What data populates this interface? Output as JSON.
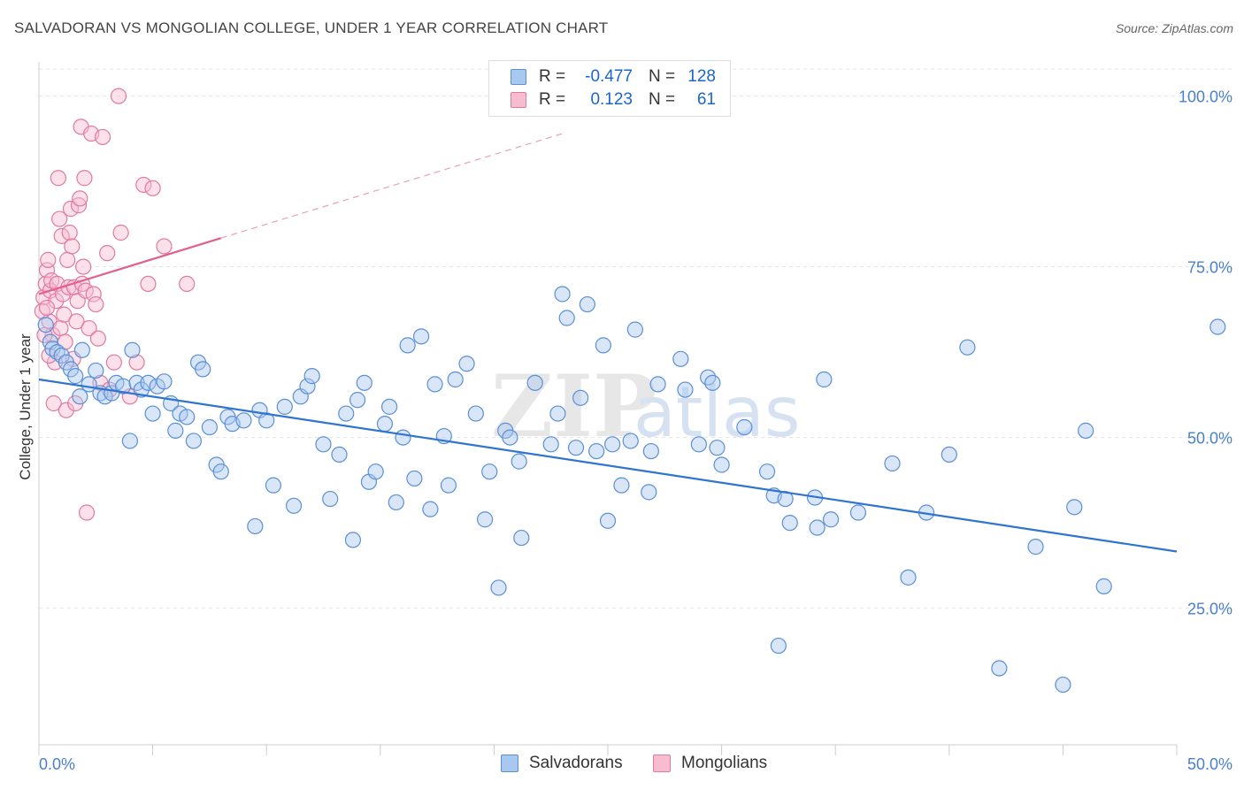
{
  "header": {
    "title": "SALVADORAN VS MONGOLIAN COLLEGE, UNDER 1 YEAR CORRELATION CHART",
    "source": "Source: ZipAtlas.com"
  },
  "legend": {
    "rows": [
      {
        "r_label": "R =",
        "r_value": "-0.477",
        "n_label": "N =",
        "n_value": "128",
        "color": "#a8c8f0",
        "border": "#5b8fd6"
      },
      {
        "r_label": "R =",
        "r_value": "0.123",
        "n_label": "N =",
        "n_value": "61",
        "color": "#f8bcd0",
        "border": "#e07aa0"
      }
    ]
  },
  "bottom_legend": {
    "items": [
      {
        "label": "Salvadorans",
        "color": "#a8c8f0",
        "border": "#5b8fd6"
      },
      {
        "label": "Mongolians",
        "color": "#f8bcd0",
        "border": "#e07aa0"
      }
    ]
  },
  "watermark": {
    "zip": "ZIP",
    "atlas": "atlas"
  },
  "chart_data": {
    "type": "scatter",
    "title": "SALVADORAN VS MONGOLIAN COLLEGE, UNDER 1 YEAR CORRELATION CHART",
    "xlabel": "",
    "ylabel": "College, Under 1 year",
    "xlim": [
      0,
      50
    ],
    "ylim": [
      5,
      105
    ],
    "x_tick_labels": [
      "0.0%",
      "50.0%"
    ],
    "y_ticks": [
      25,
      50,
      75,
      100
    ],
    "y_tick_labels": [
      "25.0%",
      "50.0%",
      "75.0%",
      "100.0%"
    ],
    "grid": true,
    "series": [
      {
        "name": "Salvadorans",
        "color": "#5b8fd6",
        "fill": "#a8c8f0",
        "trend": {
          "x0": 0,
          "y0": 58.5,
          "x1": 50,
          "y1": 33.3
        },
        "points": [
          [
            0.3,
            66.5
          ],
          [
            0.5,
            64
          ],
          [
            0.6,
            63
          ],
          [
            0.8,
            62.5
          ],
          [
            1.0,
            62
          ],
          [
            1.2,
            61
          ],
          [
            1.4,
            60
          ],
          [
            1.6,
            59
          ],
          [
            1.8,
            56
          ],
          [
            1.9,
            62.8
          ],
          [
            2.2,
            57.8
          ],
          [
            2.5,
            59.8
          ],
          [
            2.7,
            56.5
          ],
          [
            2.9,
            56
          ],
          [
            3.2,
            56.5
          ],
          [
            3.4,
            58
          ],
          [
            3.7,
            57.5
          ],
          [
            4.0,
            49.5
          ],
          [
            4.1,
            62.8
          ],
          [
            4.3,
            58
          ],
          [
            4.5,
            57
          ],
          [
            4.8,
            58
          ],
          [
            5.0,
            53.5
          ],
          [
            5.2,
            57.5
          ],
          [
            5.5,
            58.2
          ],
          [
            5.8,
            55
          ],
          [
            6.0,
            51
          ],
          [
            6.2,
            53.5
          ],
          [
            6.5,
            53
          ],
          [
            6.8,
            49.5
          ],
          [
            7.0,
            61
          ],
          [
            7.2,
            60
          ],
          [
            7.5,
            51.5
          ],
          [
            7.8,
            46
          ],
          [
            8.0,
            45
          ],
          [
            8.3,
            53
          ],
          [
            8.5,
            52
          ],
          [
            9.0,
            52.5
          ],
          [
            9.5,
            37
          ],
          [
            9.7,
            54
          ],
          [
            10.0,
            52.5
          ],
          [
            10.3,
            43
          ],
          [
            10.8,
            54.5
          ],
          [
            11.2,
            40
          ],
          [
            11.5,
            56
          ],
          [
            11.8,
            57.5
          ],
          [
            12.0,
            59
          ],
          [
            12.5,
            49
          ],
          [
            12.8,
            41
          ],
          [
            13.2,
            47.5
          ],
          [
            13.5,
            53.5
          ],
          [
            13.8,
            35
          ],
          [
            14.0,
            55.5
          ],
          [
            14.3,
            58
          ],
          [
            14.5,
            43.5
          ],
          [
            14.8,
            45
          ],
          [
            15.2,
            52
          ],
          [
            15.4,
            54.5
          ],
          [
            15.7,
            40.5
          ],
          [
            16.0,
            50
          ],
          [
            16.2,
            63.5
          ],
          [
            16.5,
            44
          ],
          [
            16.8,
            64.8
          ],
          [
            17.2,
            39.5
          ],
          [
            17.4,
            57.8
          ],
          [
            17.8,
            50.2
          ],
          [
            18.0,
            43
          ],
          [
            18.3,
            58.5
          ],
          [
            18.8,
            60.8
          ],
          [
            19.2,
            53.5
          ],
          [
            19.6,
            38
          ],
          [
            19.8,
            45
          ],
          [
            20.2,
            28
          ],
          [
            20.5,
            51
          ],
          [
            20.7,
            50
          ],
          [
            21.1,
            46.5
          ],
          [
            21.2,
            35.3
          ],
          [
            21.8,
            58
          ],
          [
            22.5,
            49
          ],
          [
            22.8,
            53.5
          ],
          [
            23.0,
            71
          ],
          [
            23.2,
            67.5
          ],
          [
            23.6,
            48.5
          ],
          [
            23.8,
            55.8
          ],
          [
            24.1,
            69.5
          ],
          [
            24.5,
            48
          ],
          [
            24.8,
            63.5
          ],
          [
            25.0,
            37.8
          ],
          [
            25.2,
            49
          ],
          [
            25.6,
            43
          ],
          [
            26.0,
            49.5
          ],
          [
            26.2,
            65.8
          ],
          [
            26.8,
            42
          ],
          [
            26.9,
            48
          ],
          [
            27.2,
            57.8
          ],
          [
            28.2,
            61.5
          ],
          [
            28.4,
            57
          ],
          [
            29.0,
            49
          ],
          [
            29.4,
            58.8
          ],
          [
            29.6,
            58
          ],
          [
            29.8,
            48.5
          ],
          [
            30.0,
            46
          ],
          [
            31.0,
            51.5
          ],
          [
            32.0,
            45
          ],
          [
            32.3,
            41.5
          ],
          [
            32.5,
            19.5
          ],
          [
            32.8,
            41
          ],
          [
            33.0,
            37.5
          ],
          [
            34.1,
            41.2
          ],
          [
            34.2,
            36.8
          ],
          [
            34.5,
            58.5
          ],
          [
            34.8,
            38
          ],
          [
            36.0,
            39
          ],
          [
            37.5,
            46.2
          ],
          [
            38.2,
            29.5
          ],
          [
            39.0,
            39
          ],
          [
            40.0,
            47.5
          ],
          [
            40.8,
            63.2
          ],
          [
            42.2,
            16.2
          ],
          [
            43.8,
            34
          ],
          [
            45.0,
            13.8
          ],
          [
            45.5,
            39.8
          ],
          [
            46.0,
            51
          ],
          [
            46.8,
            28.2
          ],
          [
            51.8,
            66.2
          ]
        ]
      },
      {
        "name": "Mongolians",
        "color": "#e07aa0",
        "fill": "#f8bcd0",
        "trend": {
          "x0": 0,
          "y0": 71,
          "x1": 8,
          "y1": 79.2
        },
        "trend_ext": {
          "x0": 8,
          "y0": 79.2,
          "x1": 23,
          "y1": 94.5
        },
        "points": [
          [
            0.2,
            70.5
          ],
          [
            0.3,
            72.5
          ],
          [
            0.35,
            74.5
          ],
          [
            0.4,
            76
          ],
          [
            0.45,
            67
          ],
          [
            0.5,
            71.5
          ],
          [
            0.55,
            73
          ],
          [
            0.6,
            65
          ],
          [
            0.65,
            55
          ],
          [
            0.7,
            61
          ],
          [
            0.75,
            70
          ],
          [
            0.8,
            72.5
          ],
          [
            0.85,
            88
          ],
          [
            0.9,
            82
          ],
          [
            0.95,
            66
          ],
          [
            1.0,
            79.5
          ],
          [
            1.05,
            71
          ],
          [
            1.1,
            68
          ],
          [
            1.15,
            64
          ],
          [
            1.2,
            54
          ],
          [
            1.25,
            76
          ],
          [
            1.3,
            72
          ],
          [
            1.35,
            80
          ],
          [
            1.4,
            83.5
          ],
          [
            1.45,
            78
          ],
          [
            1.5,
            61.5
          ],
          [
            1.55,
            72
          ],
          [
            1.6,
            55
          ],
          [
            1.65,
            67
          ],
          [
            1.7,
            70
          ],
          [
            1.75,
            84
          ],
          [
            1.8,
            85
          ],
          [
            1.85,
            95.5
          ],
          [
            1.9,
            72.5
          ],
          [
            1.95,
            75
          ],
          [
            2.0,
            88
          ],
          [
            2.05,
            71.5
          ],
          [
            2.1,
            39
          ],
          [
            2.2,
            66
          ],
          [
            2.3,
            94.5
          ],
          [
            2.4,
            71
          ],
          [
            2.5,
            69.5
          ],
          [
            2.6,
            64.5
          ],
          [
            2.7,
            58
          ],
          [
            2.8,
            94
          ],
          [
            3.0,
            77
          ],
          [
            3.1,
            57
          ],
          [
            3.3,
            61
          ],
          [
            3.5,
            100
          ],
          [
            3.6,
            80
          ],
          [
            4.0,
            56
          ],
          [
            4.3,
            61
          ],
          [
            4.6,
            87
          ],
          [
            4.8,
            72.5
          ],
          [
            5.0,
            86.5
          ],
          [
            5.5,
            78
          ],
          [
            6.5,
            72.5
          ],
          [
            0.15,
            68.5
          ],
          [
            0.25,
            65
          ],
          [
            0.35,
            69
          ],
          [
            0.45,
            62
          ]
        ]
      }
    ]
  }
}
